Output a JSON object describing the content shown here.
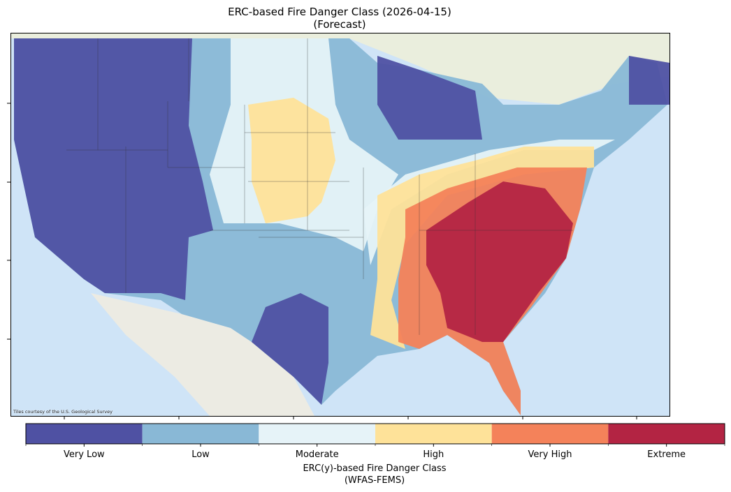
{
  "title": {
    "line1": "ERC-based Fire Danger Class (2026-04-15)",
    "line2": "(Forecast)"
  },
  "map": {
    "attribution": "Tiles courtesy of the U.S. Geological Survey"
  },
  "colorbar": {
    "classes": [
      {
        "label": "Very Low",
        "color": "#4f51a3"
      },
      {
        "label": "Low",
        "color": "#89b8d6"
      },
      {
        "label": "Moderate",
        "color": "#e6f3f8"
      },
      {
        "label": "High",
        "color": "#fee299"
      },
      {
        "label": "Very High",
        "color": "#f4825a"
      },
      {
        "label": "Extreme",
        "color": "#b32443"
      }
    ],
    "label_line1": "ERC(y)-based Fire Danger Class",
    "label_line2": "(WFAS-FEMS)"
  }
}
